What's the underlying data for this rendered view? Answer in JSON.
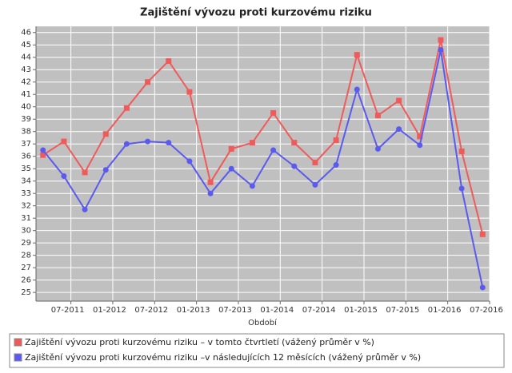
{
  "chart_data": {
    "type": "line",
    "title": "Zajištění vývozu proti kurzovému riziku",
    "x_label": "Období",
    "x": [
      "2011-03",
      "2011-06",
      "2011-09",
      "2011-12",
      "2012-03",
      "2012-06",
      "2012-09",
      "2012-12",
      "2013-03",
      "2013-06",
      "2013-09",
      "2013-12",
      "2014-03",
      "2014-06",
      "2014-09",
      "2014-12",
      "2015-03",
      "2015-06",
      "2015-09",
      "2015-12",
      "2016-03",
      "2016-06"
    ],
    "series": [
      {
        "name": "Zajištění vývozu proti kurzovému riziku – v tomto čtvrtletí (vážený průměr v %)",
        "color": "#f05a5a",
        "marker": "square",
        "values": [
          36.1,
          37.2,
          34.7,
          37.8,
          39.9,
          42.0,
          43.7,
          41.2,
          33.9,
          36.6,
          37.1,
          39.5,
          37.1,
          35.5,
          37.3,
          44.2,
          39.3,
          40.5,
          37.6,
          45.4,
          36.4,
          29.7
        ]
      },
      {
        "name": "Zajištění vývozu proti kurzovému riziku –v následujících 12 měsících (vážený průměr v %)",
        "color": "#5a5af0",
        "marker": "circle",
        "values": [
          36.5,
          34.4,
          31.7,
          34.9,
          37.0,
          37.2,
          37.1,
          35.6,
          33.0,
          35.0,
          33.6,
          36.5,
          35.2,
          33.7,
          35.3,
          41.4,
          36.6,
          38.2,
          36.9,
          44.6,
          33.4,
          25.4
        ]
      }
    ],
    "xlim": [
      "2011-02",
      "2016-07"
    ],
    "xticks": [
      {
        "value": "2011-07",
        "label": "07-2011"
      },
      {
        "value": "2012-01",
        "label": "01-2012"
      },
      {
        "value": "2012-07",
        "label": "07-2012"
      },
      {
        "value": "2013-01",
        "label": "01-2013"
      },
      {
        "value": "2013-07",
        "label": "07-2013"
      },
      {
        "value": "2014-01",
        "label": "01-2014"
      },
      {
        "value": "2014-07",
        "label": "07-2014"
      },
      {
        "value": "2015-01",
        "label": "01-2015"
      },
      {
        "value": "2015-07",
        "label": "07-2015"
      },
      {
        "value": "2016-01",
        "label": "01-2016"
      },
      {
        "value": "2016-07",
        "label": "07-2016"
      }
    ],
    "ylim": [
      24.3,
      46.5
    ],
    "yticks": [
      25,
      26,
      27,
      28,
      29,
      30,
      31,
      32,
      33,
      34,
      35,
      36,
      37,
      38,
      39,
      40,
      41,
      42,
      43,
      44,
      45,
      46
    ],
    "grid": true,
    "legend": "bottom"
  }
}
